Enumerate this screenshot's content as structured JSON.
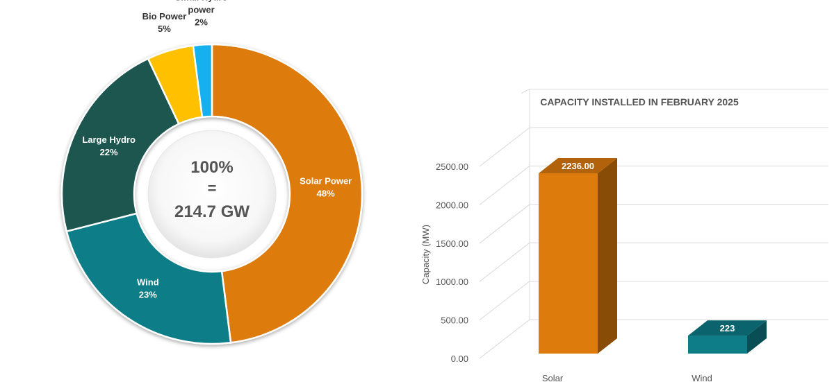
{
  "chart_data": [
    {
      "type": "pie",
      "variant": "donut",
      "slices": [
        {
          "label": "Solar Power",
          "pct_label": "48%",
          "value": 48,
          "color": "#DD7B0C"
        },
        {
          "label": "Wind",
          "pct_label": "23%",
          "value": 23,
          "color": "#0E7D88"
        },
        {
          "label": "Large Hydro",
          "pct_label": "22%",
          "value": 22,
          "color": "#1B5750"
        },
        {
          "label": "Bio Power",
          "pct_label": "5%",
          "value": 5,
          "color": "#FFC000"
        },
        {
          "label": "Small Hydro power",
          "label_lines": [
            "Small Hydro",
            "power"
          ],
          "pct_label": "2%",
          "value": 2,
          "color": "#12B0EE"
        }
      ],
      "center": {
        "line1": "100%",
        "line2": "=",
        "line3": "214.7 GW"
      }
    },
    {
      "type": "bar",
      "style": "3d",
      "title": "CAPACITY INSTALLED IN FEBRUARY 2025",
      "ylabel": "Capacity (MW)",
      "ylim": [
        0,
        2500
      ],
      "yticks": [
        "0.00",
        "500.00",
        "1000.00",
        "1500.00",
        "2000.00",
        "2500.00"
      ],
      "categories": [
        "Solar",
        "Wind"
      ],
      "values": [
        2236,
        223
      ],
      "data_labels": [
        "2236.00",
        "223"
      ],
      "colors": [
        "#DD7B0C",
        "#0E7D88"
      ]
    }
  ]
}
